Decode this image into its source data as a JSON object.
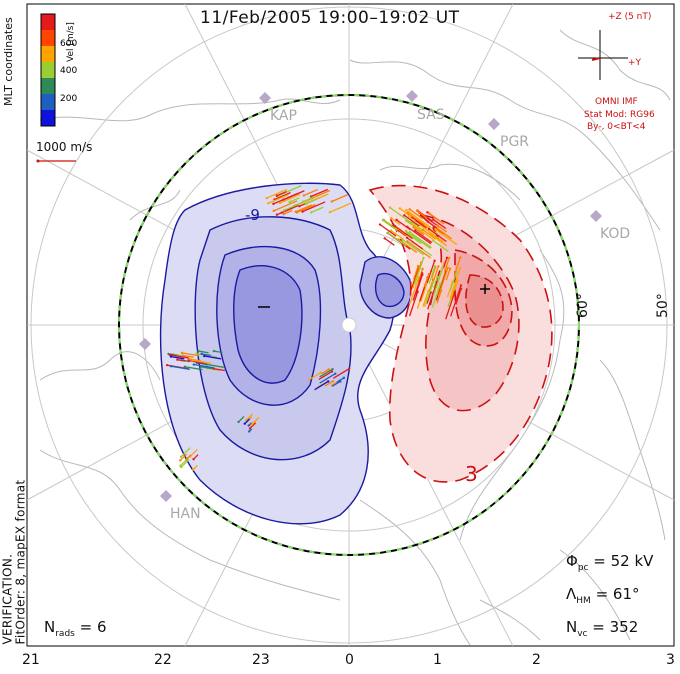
{
  "title": "11/Feb/2005 19:00–19:02 UT",
  "colorbar": {
    "label": "Vel [m/s]",
    "ticks": [
      "600",
      "400",
      "200"
    ],
    "colors": [
      "#e41a1c",
      "#ff7f00",
      "#ffa500",
      "#9acd32",
      "#2e8b57",
      "#1f5fbf",
      "#1111dd"
    ]
  },
  "mlt_coordinates_label": "MLT coordinates",
  "scale_vector_label": "1000 m/s",
  "imf": {
    "z_label": "+Z (5 nT)",
    "y_label": "+Y",
    "source": "OMNI IMF",
    "model": "Stat Mod: RG96",
    "condition": "By-, 0<BT<4"
  },
  "stations": [
    {
      "code": "KAP"
    },
    {
      "code": "SAS"
    },
    {
      "code": "PGR"
    },
    {
      "code": "KOD"
    },
    {
      "code": "HAN"
    }
  ],
  "latitude_labels": [
    "60°",
    "50°"
  ],
  "mlt_ticks": [
    "21",
    "22",
    "23",
    "0",
    "1",
    "2",
    "3"
  ],
  "contours": {
    "negative_symbol": "–",
    "positive_symbol": "+",
    "label_negative": "-9",
    "label_positive": "3"
  },
  "stats": {
    "phi_pc_symbol": "Φ",
    "phi_pc_sub": "pc",
    "phi_pc_value": "= 52 kV",
    "lambda_symbol": "Λ",
    "lambda_sub": "HM",
    "lambda_value": "= 61°",
    "nvc_symbol": "N",
    "nvc_sub": "vc",
    "nvc_value": "= 352",
    "nrads_symbol": "N",
    "nrads_sub": "rads",
    "nrads_value": "= 6"
  },
  "note": "NOTE: FOR PREVIEW PURPOSES ONLY. PLEASE CONTACT VT-SD STAFF FOR VERIFICATION.",
  "fit_order": "FitOrder: 8, mapEX format",
  "colors": {
    "negative_fill": "#7f7fe0",
    "positive_fill": "#f08080",
    "negative_line": "#1a1aa0",
    "positive_line": "#cc1111",
    "boundary": "#000000",
    "hmb_dash": "#80e060"
  }
}
